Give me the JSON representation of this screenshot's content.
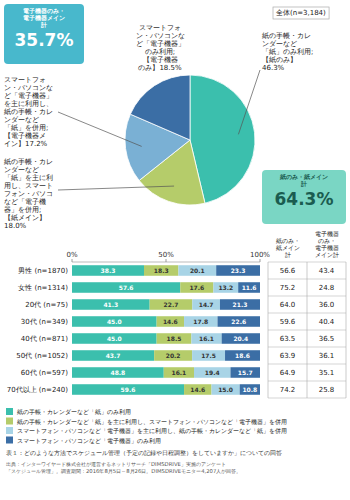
{
  "chart_data": [
    {
      "type": "pie",
      "title": "全体(n=3,184)",
      "values": [
        46.3,
        18.0,
        17.2,
        18.5
      ],
      "colors": [
        "#3bbfad",
        "#b5cc6a",
        "#7ab0d4",
        "#3b6ea5"
      ],
      "value_labels": [
        "紙の手帳・カレ\nンダーなど\n「紙」のみ利用;\n【紙のみ】\n46.3%",
        "紙の手帳・カレ\nンダーなど\n「紙」を主に利\n用し、スマート\nフォン・パソコ\nなど「電子機\n器」を併用;\n【紙メイン】\n18.0%",
        "スマートフォ\nン・パソコンな\nど「電子機器」\nを主に利用し、\n紙の手帳・カレ\nンダーなど\n「紙」を併用;\n【電子機器メ\nイン】17.2%",
        "スマートフォ\nン・パソコンな\nど「電子機器」\nのみ利用;\n【電子機器\nのみ】18.5%"
      ],
      "annotations": [
        {
          "text": "電子機器のみ・\n電子機器メイン\n計",
          "value": 35.7,
          "label": "35.7%",
          "color": "#48b8cc"
        },
        {
          "text": "紙のみ・紙メイン\n計",
          "value": 64.3,
          "label": "64.3%",
          "color": "#7ad6c4"
        }
      ]
    },
    {
      "type": "bar",
      "orientation": "horizontal",
      "stacked": true,
      "categories": [
        "男性 (n=1870)",
        "女性 (n=1314)",
        "20代 (n=75)",
        "30代 (n=349)",
        "40代 (n=871)",
        "50代 (n=1052)",
        "60代 (n=597)",
        "70代以上 (n=240)"
      ],
      "series": [
        {
          "name": "紙の手帳・カレンダーなど「紙」のみ利用",
          "color": "#3bbfad",
          "values": [
            38.3,
            57.6,
            41.3,
            45.0,
            45.0,
            43.7,
            48.8,
            59.6
          ],
          "value_labels": [
            "38.3",
            "57.6",
            "41.3",
            "45.0",
            "45.0",
            "43.7",
            "48.8",
            "59.6"
          ]
        },
        {
          "name": "紙の手帳・カレンダーなど「紙」を主に利用し、スマートフォン・パソコンなど「電子機器」を併用",
          "color": "#b5cc6a",
          "values": [
            18.3,
            17.6,
            22.7,
            14.6,
            18.5,
            20.2,
            16.1,
            14.6
          ],
          "value_labels": [
            "18.3",
            "17.6",
            "22.7",
            "14.6",
            "18.5",
            "20.2",
            "16.1",
            "14.6"
          ]
        },
        {
          "name": "スマートフォン・パソコンなど「電子機器」を主に利用し、紙の手帳・カレンダーなど「紙」を併用",
          "color": "#a8d4e6",
          "values": [
            20.1,
            13.2,
            14.7,
            17.8,
            16.1,
            17.5,
            19.4,
            15.0
          ],
          "value_labels": [
            "20.1",
            "13.2",
            "14.7",
            "17.8",
            "16.1",
            "17.5",
            "19.4",
            "15.0"
          ]
        },
        {
          "name": "スマートフォン・パソコンなど「電子機器」のみ利用",
          "color": "#3b6ea5",
          "values": [
            23.3,
            11.6,
            21.3,
            22.6,
            20.4,
            18.6,
            15.7,
            10.8
          ],
          "value_labels": [
            "23.3",
            "11.6",
            "21.3",
            "22.6",
            "20.4",
            "18.6",
            "15.7",
            "10.8"
          ]
        }
      ],
      "xlim": [
        0,
        100
      ],
      "xticks": [
        {
          "value": 0,
          "label": "0%"
        },
        {
          "value": 50,
          "label": "50%"
        },
        {
          "value": 100,
          "label": "100%"
        }
      ],
      "data_labels": true,
      "grid": false,
      "legend": "bottom",
      "caption": "表１：どのような方法でスケジュール管理（予定の記録や日程調整）をしていますか」についての回答",
      "source": "出典：インターワイヤード株式会社が運営するネットリサーチ「DIMSDRIVE」実施のアンケート\n「スケジュール管理」。調査期間：2016年8月5日～8月26日。DIMSDRIVEモニター4,207人が回答。"
    },
    {
      "type": "table",
      "series": [
        {
          "name": "紙のみ・\n紙メイン\n計",
          "values": [
            56.6,
            75.2,
            64.0,
            59.6,
            63.5,
            63.9,
            64.9,
            74.2
          ],
          "value_labels": [
            "56.6",
            "75.2",
            "64.0",
            "59.6",
            "63.5",
            "63.9",
            "64.9",
            "74.2"
          ]
        },
        {
          "name": "電子機器\nのみ・\n電子機器\nメイン計",
          "values": [
            43.4,
            24.8,
            36.0,
            40.4,
            36.5,
            36.1,
            35.1,
            25.8
          ],
          "value_labels": [
            "43.4",
            "24.8",
            "36.0",
            "40.4",
            "36.5",
            "36.1",
            "35.1",
            "25.8"
          ]
        }
      ]
    }
  ]
}
